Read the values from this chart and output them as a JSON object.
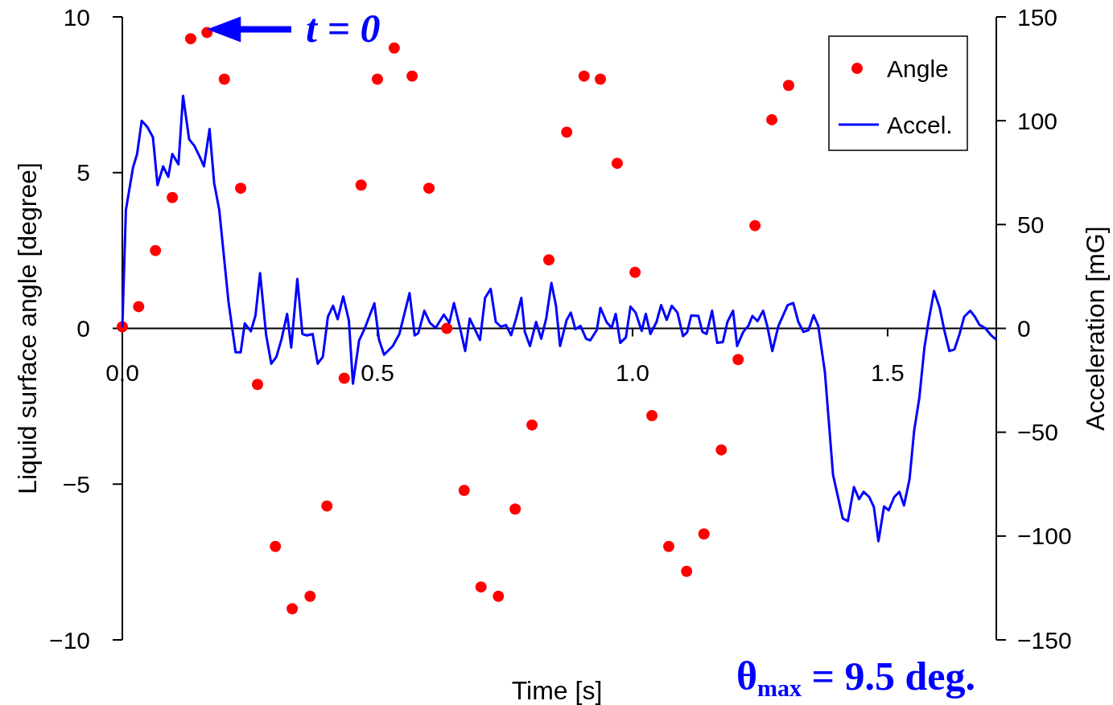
{
  "chart_data": {
    "type": "scatter",
    "xlabel": "Time [s]",
    "ylabel": "Liquid surface angle [degree]",
    "y2label": "Acceleration [mG]",
    "xlim": [
      0,
      1.713
    ],
    "ylim": [
      -10,
      10
    ],
    "y2lim": [
      -150,
      150
    ],
    "xticks": [
      {
        "value": 0,
        "label": "0.0"
      },
      0.5,
      {
        "value": 1,
        "label": "1.0"
      },
      1.5
    ],
    "yticks": [
      {
        "value": -10,
        "label": "−10"
      },
      {
        "value": -5,
        "label": "−5"
      },
      0,
      5,
      10
    ],
    "y2ticks": [
      {
        "value": -150,
        "label": "−150"
      },
      {
        "value": -100,
        "label": "−100"
      },
      {
        "value": -50,
        "label": "−50"
      },
      0,
      50,
      100,
      150
    ],
    "legend": "top right",
    "grid": false,
    "annotations": [
      {
        "text": "t = 0",
        "x": 0.166,
        "y": 9.5
      },
      "θ$_{max}$ = 9.5 deg."
    ],
    "series": [
      {
        "name": "Angle",
        "marker": "circle",
        "color": "#ff0000",
        "x": [
          0,
          0.032,
          0.065,
          0.098,
          0.134,
          0.166,
          0.2,
          0.232,
          0.265,
          0.3,
          0.333,
          0.368,
          0.401,
          0.435,
          0.468,
          0.5,
          0.533,
          0.568,
          0.601,
          0.636,
          0.67,
          0.703,
          0.737,
          0.77,
          0.803,
          0.836,
          0.871,
          0.905,
          0.937,
          0.97,
          1.005,
          1.038,
          1.071,
          1.106,
          1.14,
          1.174,
          1.207,
          1.24,
          1.273,
          1.306
        ],
        "values": [
          0.05,
          0.7,
          2.5,
          4.2,
          9.3,
          9.5,
          8.0,
          4.5,
          -1.8,
          -7.0,
          -9.0,
          -8.6,
          -5.7,
          -1.6,
          4.6,
          8.0,
          9.0,
          8.1,
          4.5,
          0.0,
          -5.2,
          -8.3,
          -8.6,
          -5.8,
          -3.1,
          2.2,
          6.3,
          8.1,
          8.0,
          5.3,
          1.8,
          -2.8,
          -7.0,
          -7.8,
          -6.6,
          -3.9,
          -1.0,
          3.3,
          6.7,
          7.8
        ]
      },
      {
        "name": "Accel.",
        "type": "line",
        "axis": "y2",
        "line_style": "solid",
        "color": "#0000ff",
        "x": [
          0,
          0.007,
          0.021,
          0.029,
          0.038,
          0.049,
          0.06,
          0.069,
          0.08,
          0.09,
          0.098,
          0.11,
          0.119,
          0.131,
          0.141,
          0.152,
          0.16,
          0.171,
          0.18,
          0.19,
          0.199,
          0.208,
          0.222,
          0.232,
          0.24,
          0.252,
          0.261,
          0.27,
          0.282,
          0.292,
          0.302,
          0.312,
          0.323,
          0.331,
          0.343,
          0.353,
          0.362,
          0.373,
          0.383,
          0.393,
          0.403,
          0.413,
          0.422,
          0.433,
          0.444,
          0.452,
          0.464,
          0.475,
          0.494,
          0.503,
          0.513,
          0.53,
          0.543,
          0.563,
          0.573,
          0.58,
          0.584,
          0.592,
          0.603,
          0.614,
          0.63,
          0.641,
          0.65,
          0.661,
          0.672,
          0.681,
          0.691,
          0.701,
          0.711,
          0.722,
          0.732,
          0.742,
          0.752,
          0.762,
          0.772,
          0.782,
          0.789,
          0.799,
          0.811,
          0.821,
          0.831,
          0.841,
          0.85,
          0.858,
          0.871,
          0.879,
          0.888,
          0.898,
          0.909,
          0.917,
          0.93,
          0.937,
          0.949,
          0.959,
          0.967,
          0.976,
          0.987,
          0.996,
          1.006,
          1.018,
          1.026,
          1.035,
          1.047,
          1.056,
          1.067,
          1.077,
          1.088,
          1.099,
          1.107,
          1.115,
          1.129,
          1.137,
          1.145,
          1.156,
          1.166,
          1.177,
          1.186,
          1.197,
          1.205,
          1.217,
          1.227,
          1.235,
          1.245,
          1.256,
          1.264,
          1.274,
          1.286,
          1.304,
          1.315,
          1.325,
          1.335,
          1.345,
          1.355,
          1.364,
          1.377,
          1.393,
          1.412,
          1.422,
          1.434,
          1.444,
          1.453,
          1.464,
          1.473,
          1.482,
          1.493,
          1.502,
          1.513,
          1.523,
          1.532,
          1.543,
          1.552,
          1.562,
          1.572,
          1.58,
          1.591,
          1.602,
          1.611,
          1.621,
          1.631,
          1.641,
          1.65,
          1.662,
          1.671,
          1.68,
          1.691,
          1.702,
          1.713
        ],
        "values": [
          0.5,
          57,
          77.5,
          84,
          100,
          97,
          92,
          69,
          78,
          73,
          84,
          79,
          112,
          91,
          88,
          82.5,
          78,
          96,
          70,
          57,
          35,
          13,
          -11.5,
          -11.5,
          2.4,
          -1.4,
          6.3,
          26.6,
          -3.4,
          -17,
          -13.7,
          -5.3,
          7,
          -9.2,
          23.8,
          -2.7,
          -3.4,
          -2.7,
          -17,
          -13.7,
          5.7,
          10.9,
          4.4,
          15.4,
          3.8,
          -26.6,
          -5.9,
          -0.1,
          12.1,
          -5.3,
          -12.7,
          -8.5,
          -2.7,
          17,
          -3.4,
          -2.3,
          1.2,
          8.5,
          2.7,
          0.2,
          6.6,
          2.7,
          12.2,
          1.2,
          -10.9,
          4.7,
          -0.4,
          -5.6,
          14.7,
          19,
          3.1,
          0.8,
          1.6,
          -3.3,
          5,
          14.7,
          -1.7,
          -8.5,
          3.1,
          -5,
          5,
          21.9,
          10.9,
          -8.5,
          4.1,
          7.6,
          -0.4,
          1.2,
          -5,
          -5.8,
          -0.8,
          9.9,
          3.1,
          0.2,
          7,
          -7,
          -4.3,
          10.5,
          7.6,
          -1.2,
          7,
          -2.7,
          3.1,
          11.2,
          4.1,
          10.9,
          7.6,
          -3.7,
          -1.9,
          6.2,
          6,
          -1.7,
          -2.7,
          8.5,
          -7,
          -6.6,
          3.1,
          8.5,
          -8.5,
          -1.7,
          1.2,
          6,
          3.5,
          8.5,
          1.2,
          -10.9,
          1.2,
          11.2,
          12.2,
          3.1,
          -1.7,
          -0.8,
          6.4,
          1.2,
          -21,
          -70.5,
          -91.5,
          -92.8,
          -76.4,
          -82.2,
          -78.7,
          -81.2,
          -86,
          -102.5,
          -85.7,
          -87.6,
          -81.2,
          -78.7,
          -85.3,
          -72.5,
          -49.2,
          -33.7,
          -9.5,
          3.1,
          18,
          9.9,
          -0.8,
          -10.9,
          -10.1,
          -2.7,
          5.6,
          8.5,
          5.6,
          1.7,
          0.2,
          -3.1,
          -5.5
        ]
      }
    ]
  }
}
